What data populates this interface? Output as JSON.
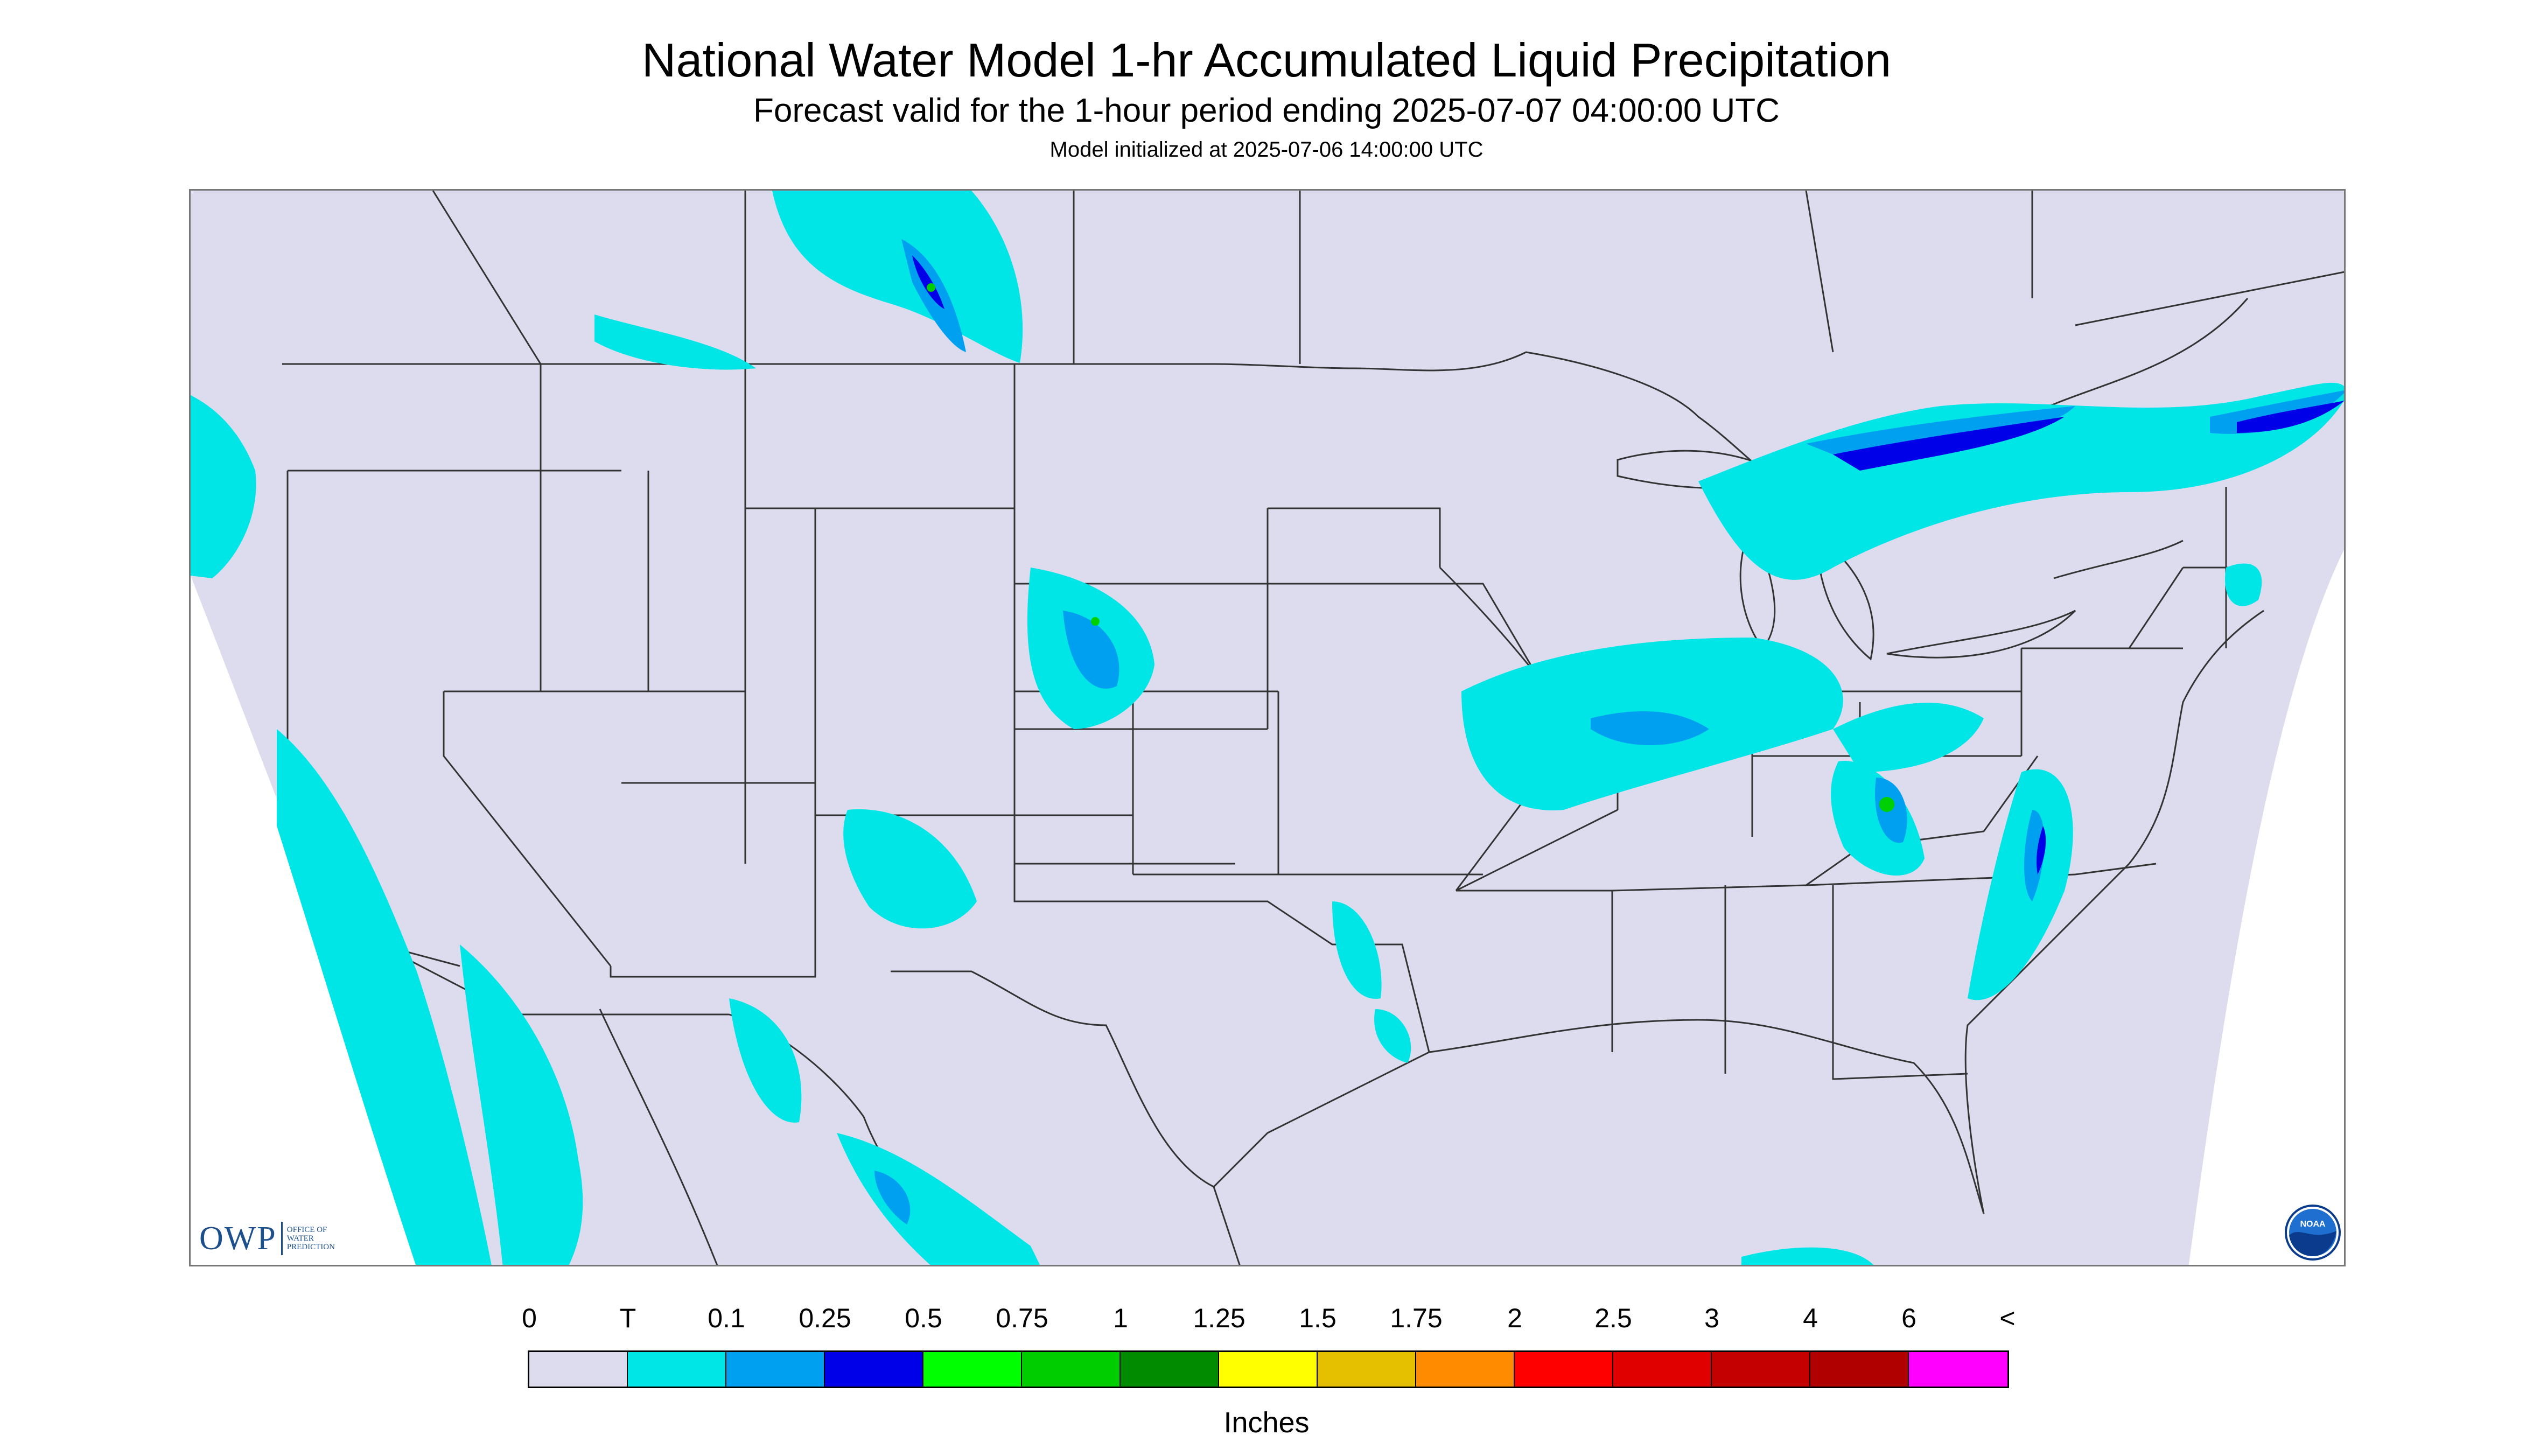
{
  "header": {
    "title": "National Water Model 1-hr Accumulated Liquid Precipitation",
    "subtitle": "Forecast valid for the 1-hour period ending 2025-07-07 04:00:00 UTC",
    "init": "Model initialized at 2025-07-06 14:00:00 UTC"
  },
  "map": {
    "background_color": "#dcdcee",
    "outside_color": "#ffffff",
    "border_color": "#333333",
    "precip_colors": {
      "trace": "#00e5e5",
      "light": "#00a0f0",
      "moderate": "#0000e8",
      "heavy": "#00d000"
    }
  },
  "logos": {
    "owp": {
      "mark": "OWP",
      "text_lines": [
        "OFFICE OF",
        "WATER",
        "PREDICTION"
      ],
      "icon": "owp-logo-icon"
    },
    "noaa": {
      "text": "NOAA",
      "icon": "noaa-logo-icon"
    }
  },
  "legend": {
    "units": "Inches",
    "ticks": [
      "0",
      "T",
      "0.1",
      "0.25",
      "0.5",
      "0.75",
      "1",
      "1.25",
      "1.5",
      "1.75",
      "2",
      "2.5",
      "3",
      "4",
      "6",
      "<"
    ],
    "colors": [
      "#dcdcee",
      "#00e5e5",
      "#00a0f0",
      "#0000e8",
      "#00ff00",
      "#00cd00",
      "#008b00",
      "#ffff00",
      "#e5c000",
      "#ff8c00",
      "#ff0000",
      "#e00000",
      "#c40000",
      "#b00000",
      "#ff00ff",
      "#9955cc"
    ]
  }
}
